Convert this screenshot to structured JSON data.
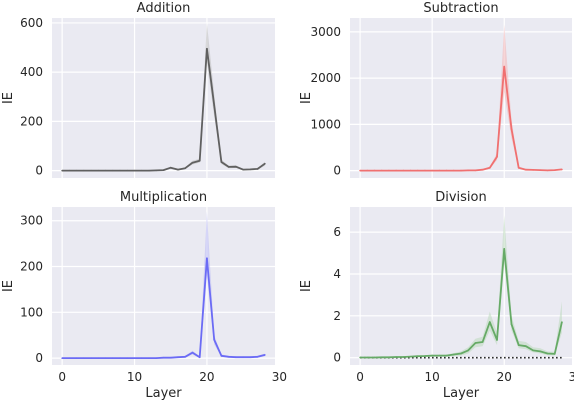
{
  "chart_data": [
    {
      "type": "line",
      "title": "Addition",
      "xlabel": "",
      "ylabel": "IE",
      "xlim": [
        -1.4,
        29.4
      ],
      "ylim": [
        -30,
        620
      ],
      "xticks": [],
      "xtick_labels": [],
      "yticks": [
        0,
        200,
        400,
        600
      ],
      "ytick_labels": [
        "0",
        "200",
        "400",
        "600"
      ],
      "grid": true,
      "color": "#606060",
      "band_color": "#b8b8b8",
      "x": [
        0,
        1,
        2,
        3,
        4,
        5,
        6,
        7,
        8,
        9,
        10,
        11,
        12,
        13,
        14,
        15,
        16,
        17,
        18,
        19,
        20,
        21,
        22,
        23,
        24,
        25,
        26,
        27,
        28
      ],
      "values": [
        0,
        0,
        0,
        0,
        0,
        0,
        0,
        0,
        0,
        0,
        0,
        0,
        0,
        1,
        2,
        12,
        4,
        10,
        32,
        40,
        495,
        265,
        35,
        15,
        16,
        4,
        5,
        7,
        28
      ],
      "lower": [
        0,
        0,
        0,
        0,
        0,
        0,
        0,
        0,
        0,
        0,
        0,
        0,
        0,
        0,
        1,
        8,
        2,
        7,
        25,
        33,
        440,
        220,
        27,
        10,
        11,
        2,
        3,
        4,
        20
      ],
      "upper": [
        0,
        0,
        0,
        0,
        0,
        0,
        0,
        0,
        0,
        0,
        0,
        0,
        0,
        2,
        3,
        16,
        6,
        13,
        40,
        48,
        600,
        310,
        45,
        20,
        21,
        6,
        7,
        10,
        36
      ],
      "baseline": false
    },
    {
      "type": "line",
      "title": "Subtraction",
      "xlabel": "",
      "ylabel": "IE",
      "xlim": [
        -1.4,
        29.4
      ],
      "ylim": [
        -160,
        3300
      ],
      "xticks": [],
      "xtick_labels": [],
      "yticks": [
        0,
        1000,
        2000,
        3000
      ],
      "ytick_labels": [
        "0",
        "1000",
        "2000",
        "3000"
      ],
      "grid": true,
      "color": "#f07070",
      "band_color": "#f4b0b0",
      "x": [
        0,
        1,
        2,
        3,
        4,
        5,
        6,
        7,
        8,
        9,
        10,
        11,
        12,
        13,
        14,
        15,
        16,
        17,
        18,
        19,
        20,
        21,
        22,
        23,
        24,
        25,
        26,
        27,
        28
      ],
      "values": [
        0,
        0,
        0,
        0,
        0,
        0,
        0,
        0,
        0,
        0,
        0,
        0,
        0,
        0,
        0,
        5,
        5,
        20,
        60,
        300,
        2250,
        900,
        60,
        20,
        15,
        10,
        5,
        10,
        25
      ],
      "lower": [
        0,
        0,
        0,
        0,
        0,
        0,
        0,
        0,
        0,
        0,
        0,
        0,
        0,
        0,
        0,
        2,
        2,
        10,
        40,
        230,
        1700,
        700,
        40,
        10,
        8,
        5,
        2,
        5,
        15
      ],
      "upper": [
        0,
        0,
        0,
        0,
        0,
        0,
        0,
        0,
        0,
        0,
        0,
        0,
        0,
        0,
        0,
        10,
        10,
        30,
        80,
        380,
        3150,
        1100,
        80,
        30,
        22,
        15,
        8,
        15,
        35
      ],
      "baseline": false
    },
    {
      "type": "line",
      "title": "Multiplication",
      "xlabel": "",
      "ylabel": "IE",
      "xlim": [
        -1.4,
        29.4
      ],
      "ylim": [
        -15,
        330
      ],
      "xticks": [
        0,
        10,
        20,
        30
      ],
      "xtick_labels": [
        "0",
        "10",
        "20",
        "30"
      ],
      "yticks": [
        0,
        100,
        200,
        300
      ],
      "ytick_labels": [
        "0",
        "100",
        "200",
        "300"
      ],
      "grid": true,
      "color": "#6b6bf5",
      "band_color": "#b5b5f6",
      "x": [
        0,
        1,
        2,
        3,
        4,
        5,
        6,
        7,
        8,
        9,
        10,
        11,
        12,
        13,
        14,
        15,
        16,
        17,
        18,
        19,
        20,
        21,
        22,
        23,
        24,
        25,
        26,
        27,
        28
      ],
      "values": [
        0,
        0,
        0,
        0,
        0,
        0,
        0,
        0,
        0,
        0,
        0,
        0,
        0,
        0,
        1,
        1,
        2,
        3,
        12,
        2,
        218,
        40,
        5,
        3,
        2,
        2,
        2,
        3,
        7
      ],
      "lower": [
        0,
        0,
        0,
        0,
        0,
        0,
        0,
        0,
        0,
        0,
        0,
        0,
        0,
        0,
        0,
        0,
        1,
        1,
        8,
        0,
        180,
        30,
        3,
        1,
        1,
        1,
        1,
        1,
        4
      ],
      "upper": [
        0,
        0,
        0,
        0,
        0,
        0,
        0,
        0,
        0,
        0,
        0,
        0,
        0,
        0,
        2,
        2,
        3,
        5,
        16,
        4,
        320,
        50,
        8,
        5,
        4,
        4,
        4,
        5,
        10
      ],
      "baseline": false
    },
    {
      "type": "line",
      "title": "Division",
      "xlabel": "",
      "ylabel": "IE",
      "xlim": [
        -1.4,
        29.4
      ],
      "ylim": [
        -0.35,
        7.2
      ],
      "xticks": [
        0,
        10,
        20,
        30
      ],
      "xtick_labels": [
        "0",
        "10",
        "20",
        "30"
      ],
      "yticks": [
        0,
        2,
        4,
        6
      ],
      "ytick_labels": [
        "0",
        "2",
        "4",
        "6"
      ],
      "grid": true,
      "color": "#66aa66",
      "band_color": "#b8d8b8",
      "x": [
        0,
        1,
        2,
        3,
        4,
        5,
        6,
        7,
        8,
        9,
        10,
        11,
        12,
        13,
        14,
        15,
        16,
        17,
        18,
        19,
        20,
        21,
        22,
        23,
        24,
        25,
        26,
        27,
        28
      ],
      "values": [
        0.01,
        0.01,
        0.01,
        0.02,
        0.02,
        0.03,
        0.03,
        0.05,
        0.07,
        0.08,
        0.1,
        0.1,
        0.1,
        0.15,
        0.2,
        0.35,
        0.7,
        0.75,
        1.7,
        0.85,
        5.2,
        1.6,
        0.6,
        0.55,
        0.35,
        0.3,
        0.2,
        0.18,
        1.7
      ],
      "lower": [
        0,
        0,
        0,
        0,
        0,
        0,
        0,
        0.02,
        0.03,
        0.04,
        0.05,
        0.05,
        0.05,
        0.08,
        0.1,
        0.2,
        0.5,
        0.55,
        1.3,
        0.6,
        4.5,
        1.3,
        0.45,
        0.4,
        0.25,
        0.2,
        0.12,
        0.1,
        1.2
      ],
      "upper": [
        0.02,
        0.02,
        0.02,
        0.04,
        0.04,
        0.05,
        0.05,
        0.08,
        0.1,
        0.12,
        0.15,
        0.15,
        0.15,
        0.22,
        0.3,
        0.5,
        0.9,
        1.0,
        2.2,
        1.2,
        6.8,
        2.0,
        0.8,
        0.75,
        0.5,
        0.45,
        0.3,
        0.28,
        2.7
      ],
      "baseline": true
    }
  ],
  "figure": {
    "xlabel": "Layer"
  }
}
